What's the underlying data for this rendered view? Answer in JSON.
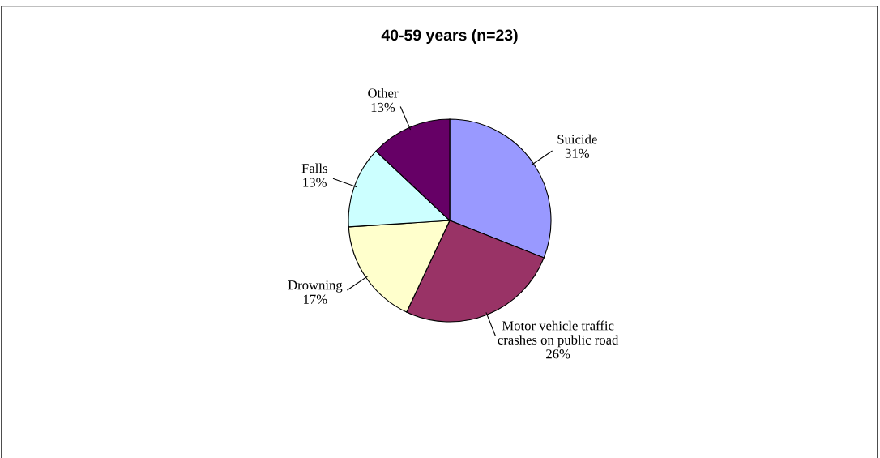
{
  "chart_data": {
    "type": "pie",
    "title": "40-59 years (n=23)",
    "categories": [
      "Suicide",
      "Motor vehicle traffic\ncrashes on public road",
      "Drowning",
      "Falls",
      "Other"
    ],
    "values": [
      31,
      26,
      17,
      13,
      13
    ],
    "colors": [
      "#9999ff",
      "#993366",
      "#ffffcc",
      "#ccffff",
      "#660066"
    ],
    "value_labels": [
      "31%",
      "26%",
      "17%",
      "13%",
      "13%"
    ],
    "legend": false
  }
}
